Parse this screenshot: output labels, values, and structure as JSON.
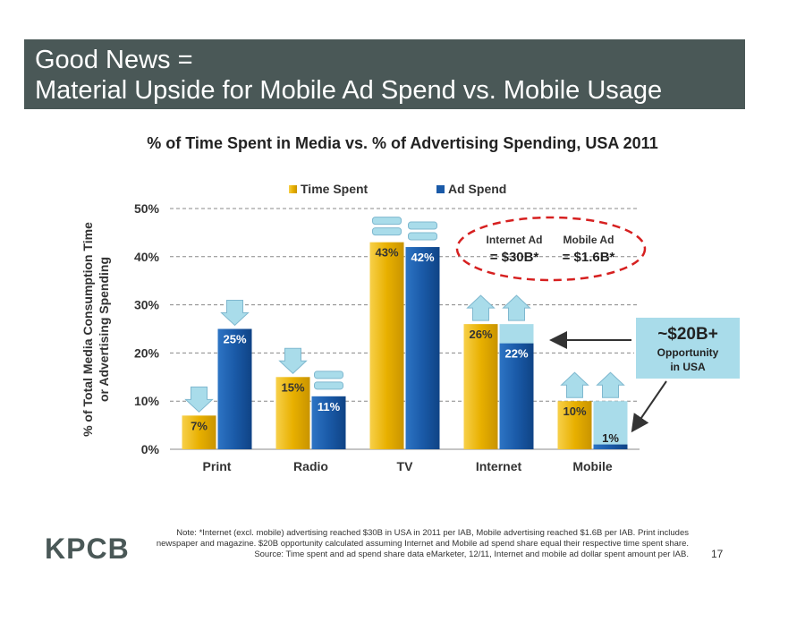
{
  "header": {
    "title_line1": "Good News =",
    "title_line2": "Material Upside for Mobile Ad Spend vs. Mobile Usage"
  },
  "chart_data": {
    "type": "bar",
    "title": "% of Time Spent in Media vs. % of Advertising Spending, USA 2011",
    "ylabel_line1": "% of Total Media Consumption Time",
    "ylabel_line2": "or Advertising Spending",
    "categories": [
      "Print",
      "Radio",
      "TV",
      "Internet",
      "Mobile"
    ],
    "series": [
      {
        "name": "Time Spent",
        "values": [
          7,
          15,
          43,
          26,
          10
        ],
        "labels": [
          "7%",
          "15%",
          "43%",
          "26%",
          "10%"
        ],
        "color": "#e8b000"
      },
      {
        "name": "Ad Spend",
        "values": [
          25,
          11,
          42,
          22,
          1
        ],
        "labels": [
          "25%",
          "11%",
          "42%",
          "22%",
          "1%"
        ],
        "color": "#1a5aa8"
      }
    ],
    "opportunity_values": [
      0,
      0,
      0,
      26,
      10
    ],
    "opportunity_color": "#a9dcea",
    "ylim": [
      0,
      50
    ],
    "yticks": [
      0,
      10,
      20,
      30,
      40,
      50
    ],
    "ytick_labels": [
      "0%",
      "10%",
      "20%",
      "30%",
      "40%",
      "50%"
    ],
    "grid": true,
    "legend_position": "top",
    "arrow_indicators": {
      "time_spent": [
        "down",
        "down",
        "equal",
        "up",
        "up"
      ],
      "ad_spend": [
        "down",
        "equal",
        "equal",
        "up",
        "up"
      ]
    }
  },
  "annotations": {
    "internet_ad_label": "Internet Ad",
    "internet_ad_value": "= $30B*",
    "mobile_ad_label": "Mobile Ad",
    "mobile_ad_value": "= $1.6B*",
    "opportunity_value": "~$20B+",
    "opportunity_line1": "Opportunity",
    "opportunity_line2": "in USA"
  },
  "footer": {
    "logo": "KPCB",
    "note": "Note: *Internet (excl. mobile) advertising reached $30B in USA in 2011 per IAB, Mobile advertising reached $1.6B per IAB. Print includes newspaper and magazine. $20B opportunity calculated assuming Internet and Mobile ad spend share equal their respective time spent share. Source: Time spent and ad spend share data eMarketer, 12/11, Internet and mobile ad dollar spent amount per IAB.",
    "page_number": "17"
  }
}
